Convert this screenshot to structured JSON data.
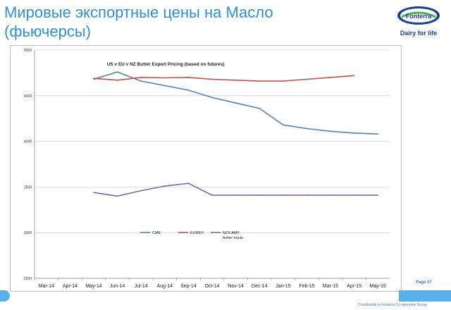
{
  "slide": {
    "title_line1": "Мировые экспортные цены на Масло",
    "title_line2": "(фьючерсы)",
    "page_number": "Page 37",
    "footer": "Confidential to Fonterra Co-operative Group"
  },
  "logo": {
    "brand": "Fonterra",
    "tagline": "Dairy for life"
  },
  "colors": {
    "title": "#2f8fd8",
    "cme": "#4f81bd",
    "eurex": "#c0504d",
    "nzx": "#8064a2"
  },
  "chart_data": {
    "type": "line",
    "title": "US v EU v NZ Butter Export Pricing (based on futures)",
    "categories": [
      "Mar-14",
      "Apr-14",
      "May-14",
      "Jun-14",
      "Jul-14",
      "Aug-14",
      "Sep-14",
      "Oct-14",
      "Nov-14",
      "Dec-14",
      "Jan-15",
      "Feb-15",
      "Mar-15",
      "Apr-15",
      "May-15"
    ],
    "yticks": [
      "5000",
      "4500",
      "4000",
      "3500",
      "3000",
      "2500"
    ],
    "ylim": [
      2500,
      5000
    ],
    "grid": true,
    "legend_position": "bottom-left",
    "series": [
      {
        "name": "CME",
        "color": "#4f81bd",
        "values": [
          null,
          null,
          4680,
          4760,
          4660,
          4610,
          4560,
          4480,
          4420,
          4360,
          4180,
          4140,
          4110,
          4090,
          4080
        ]
      },
      {
        "name": "EUREX",
        "color": "#c0504d",
        "values": [
          null,
          null,
          4690,
          4670,
          4700,
          4695,
          4700,
          4680,
          4670,
          4660,
          4660,
          4680,
          4700,
          4720,
          null
        ]
      },
      {
        "name": "NZX AMF butter equiv.",
        "color": "#8064a2",
        "values": [
          null,
          null,
          3440,
          3400,
          3460,
          3510,
          3540,
          3410,
          3410,
          3410,
          3410,
          3410,
          3410,
          3410,
          3410
        ]
      }
    ]
  }
}
